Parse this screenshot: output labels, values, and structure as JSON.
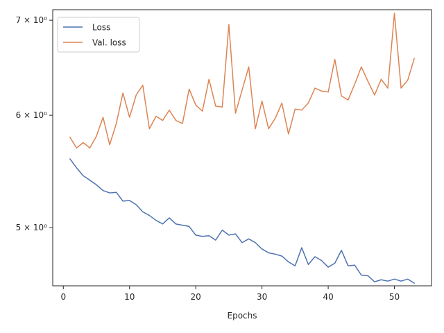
{
  "chart_data": {
    "type": "line",
    "title": "",
    "xlabel": "Epochs",
    "ylabel": "",
    "xlim": [
      -1.6,
      55.6
    ],
    "ylim": [
      4.55,
      7.12
    ],
    "yscale": "log",
    "grid": false,
    "legend_position": "top-left",
    "x_ticks": [
      0,
      10,
      20,
      30,
      40,
      50
    ],
    "y_ticks": [
      {
        "value": 5,
        "label": "5 × 10⁰"
      },
      {
        "value": 6,
        "label": "6 × 10⁰"
      },
      {
        "value": 7,
        "label": "7 × 10⁰"
      }
    ],
    "x": [
      1,
      2,
      3,
      4,
      5,
      6,
      7,
      8,
      9,
      10,
      11,
      12,
      13,
      14,
      15,
      16,
      17,
      18,
      19,
      20,
      21,
      22,
      23,
      24,
      25,
      26,
      27,
      28,
      29,
      30,
      31,
      32,
      33,
      34,
      35,
      36,
      37,
      38,
      39,
      40,
      41,
      42,
      43,
      44,
      45,
      46,
      47,
      48,
      49,
      50,
      51,
      52,
      53
    ],
    "series": [
      {
        "name": "Loss",
        "color": "#4c72b0",
        "values": [
          5.59,
          5.51,
          5.44,
          5.4,
          5.36,
          5.31,
          5.29,
          5.295,
          5.22,
          5.225,
          5.19,
          5.13,
          5.1,
          5.06,
          5.03,
          5.08,
          5.03,
          5.02,
          5.01,
          4.94,
          4.93,
          4.935,
          4.9,
          4.98,
          4.94,
          4.95,
          4.88,
          4.91,
          4.88,
          4.83,
          4.8,
          4.79,
          4.775,
          4.73,
          4.7,
          4.84,
          4.71,
          4.77,
          4.74,
          4.69,
          4.72,
          4.82,
          4.7,
          4.705,
          4.63,
          4.625,
          4.58,
          4.595,
          4.585,
          4.6,
          4.585,
          4.6,
          4.57
        ]
      },
      {
        "name": "Val. loss",
        "color": "#dd8452",
        "values": [
          5.79,
          5.69,
          5.74,
          5.69,
          5.8,
          5.98,
          5.72,
          5.92,
          6.22,
          5.98,
          6.2,
          6.3,
          5.87,
          5.99,
          5.95,
          6.05,
          5.95,
          5.92,
          6.26,
          6.1,
          6.04,
          6.36,
          6.09,
          6.08,
          6.95,
          6.02,
          6.25,
          6.49,
          5.87,
          6.14,
          5.87,
          5.97,
          6.12,
          5.82,
          6.06,
          6.05,
          6.12,
          6.27,
          6.24,
          6.23,
          6.57,
          6.19,
          6.15,
          6.31,
          6.49,
          6.34,
          6.2,
          6.36,
          6.27,
          7.08,
          6.27,
          6.35,
          6.58
        ]
      }
    ]
  }
}
